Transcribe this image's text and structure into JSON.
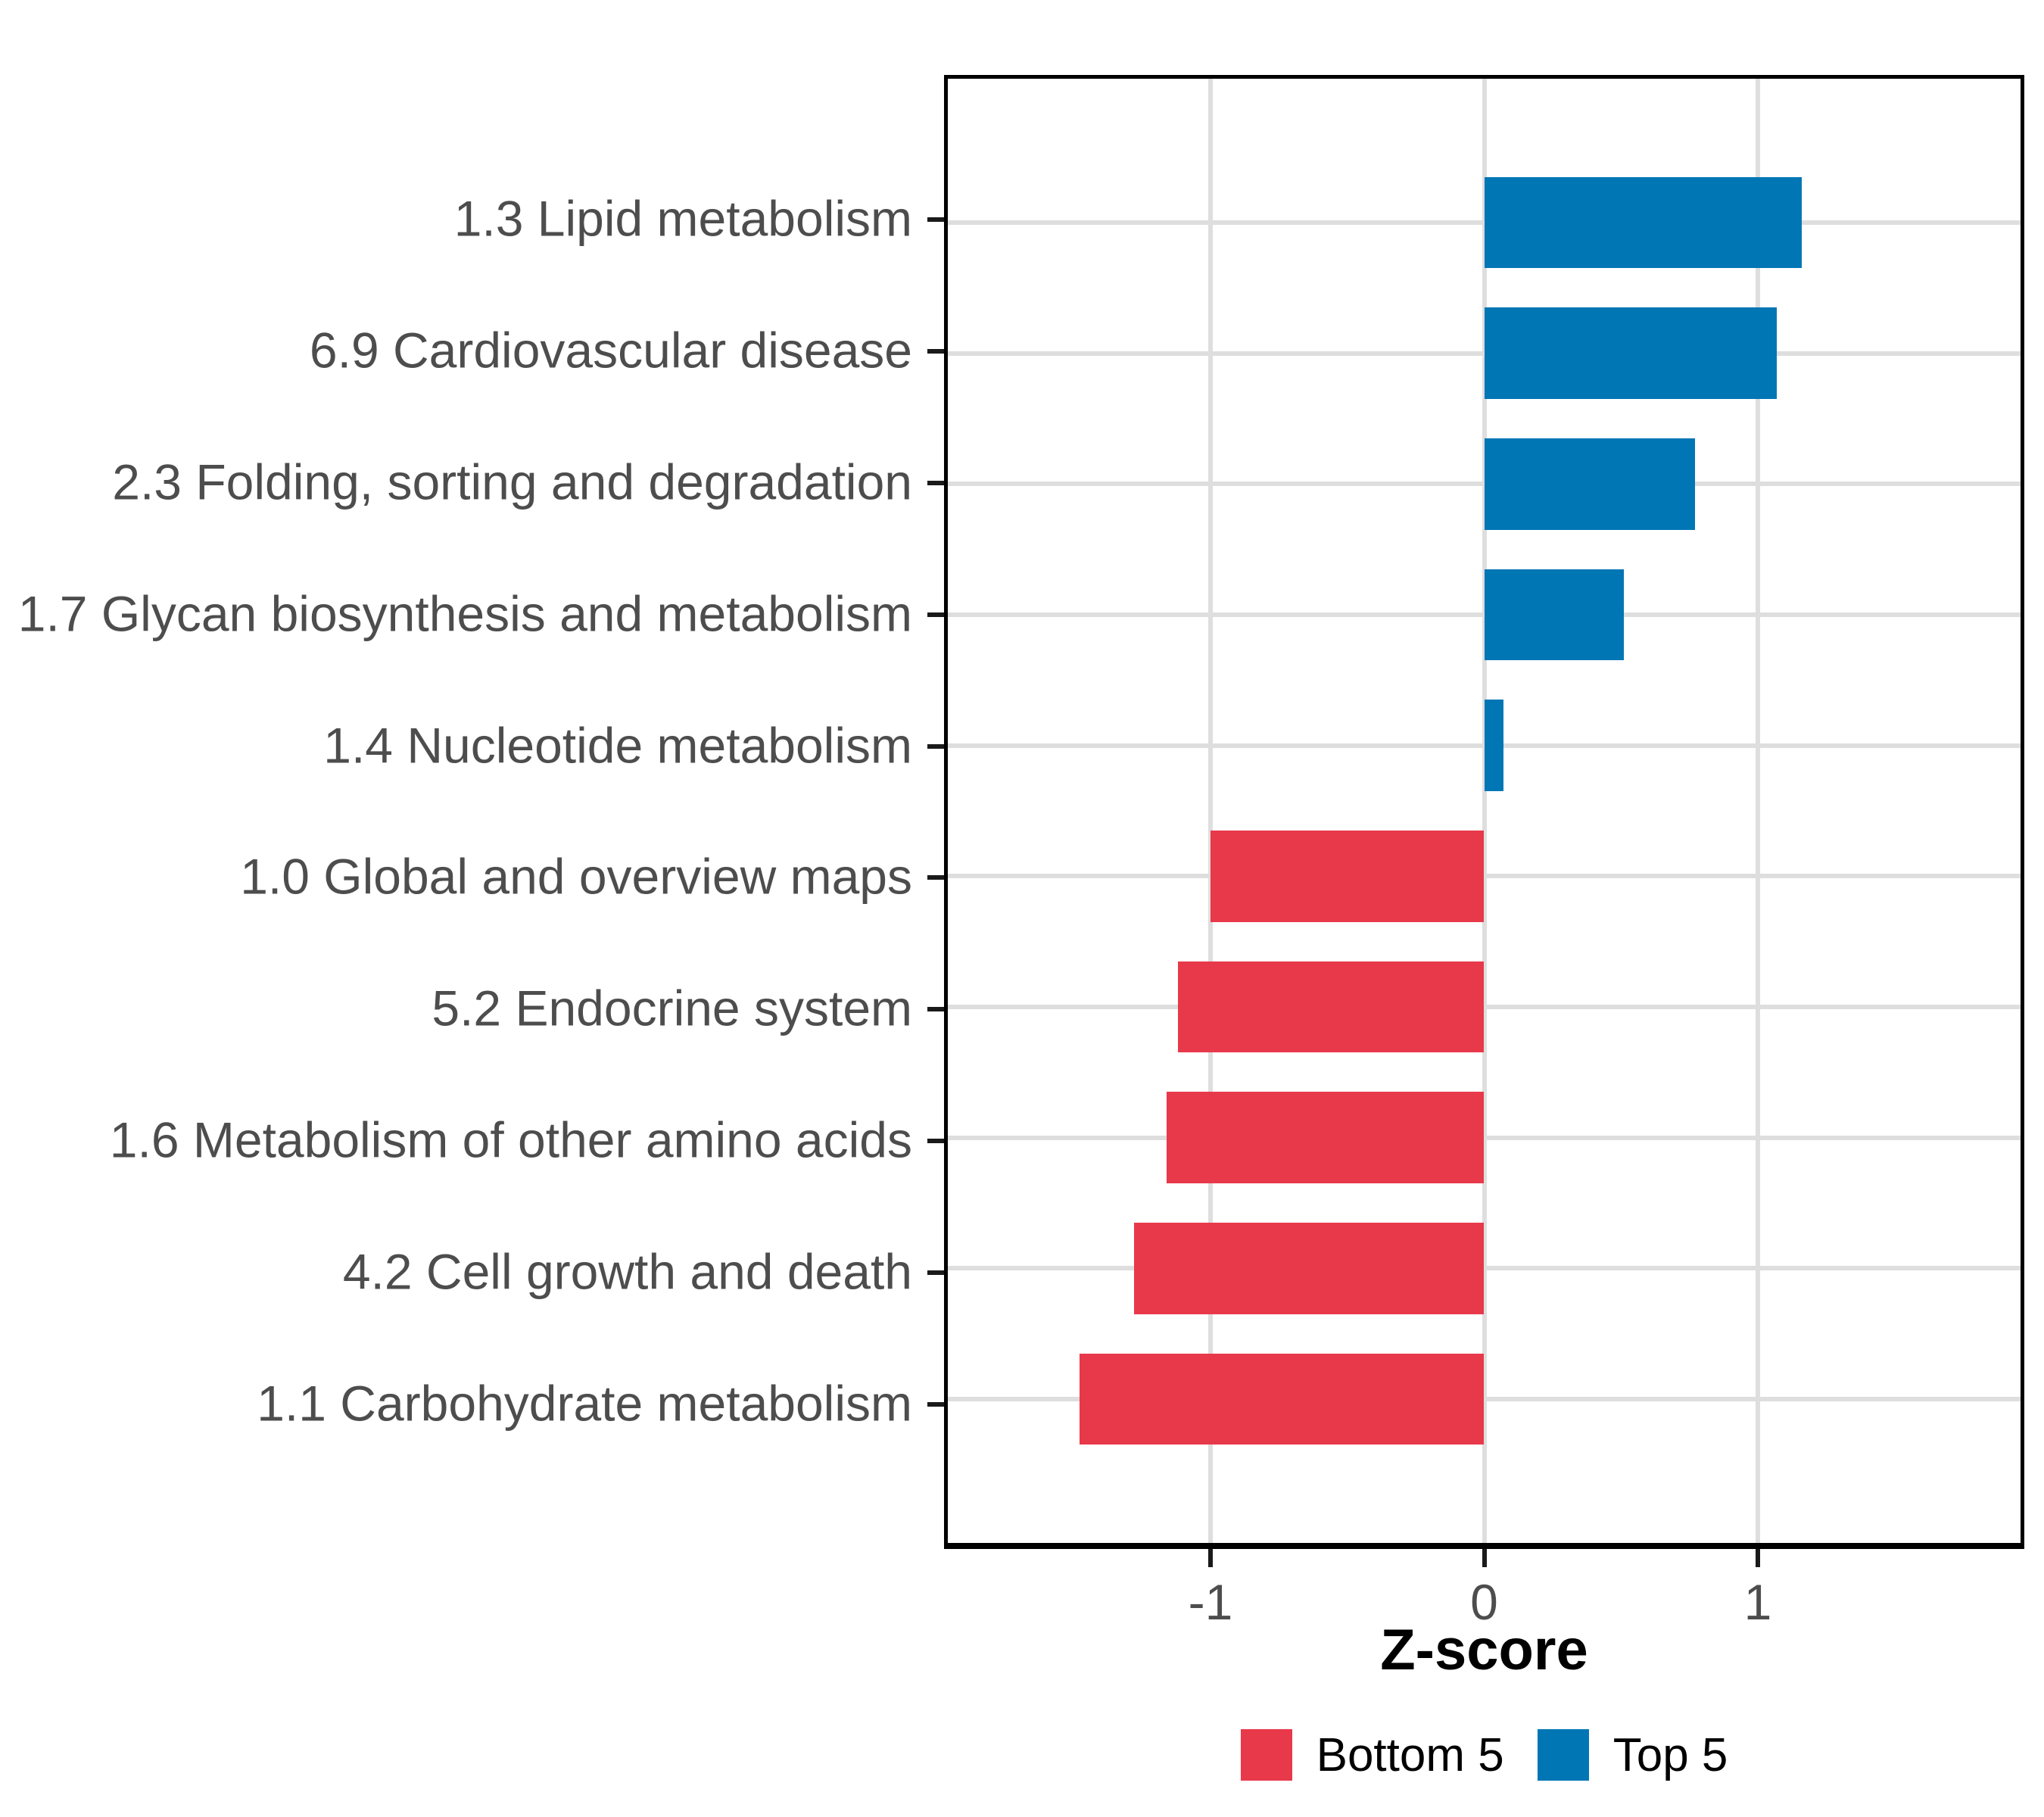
{
  "chart_data": {
    "type": "bar",
    "orientation": "horizontal",
    "title": "",
    "xlabel": "Z-score",
    "ylabel": "",
    "categories": [
      "1.3 Lipid metabolism",
      "6.9 Cardiovascular disease",
      "2.3 Folding, sorting and degradation",
      "1.7 Glycan biosynthesis and metabolism",
      "1.4 Nucleotide metabolism",
      "1.0 Global and overview maps",
      "5.2 Endocrine system",
      "1.6 Metabolism of other amino acids",
      "4.2 Cell growth and death",
      "1.1 Carbohydrate metabolism"
    ],
    "values": [
      1.16,
      1.07,
      0.77,
      0.51,
      0.07,
      -1.0,
      -1.12,
      -1.16,
      -1.28,
      -1.48
    ],
    "groups": [
      "Top 5",
      "Top 5",
      "Top 5",
      "Top 5",
      "Top 5",
      "Bottom 5",
      "Bottom 5",
      "Bottom 5",
      "Bottom 5",
      "Bottom 5"
    ],
    "xlim": [
      -1.96,
      1.96
    ],
    "xticks": [
      -1,
      0,
      1
    ],
    "xtick_labels": [
      "-1",
      "0",
      "1"
    ],
    "grid": "major-only",
    "legend_position": "bottom",
    "legend": [
      {
        "label": "Bottom 5",
        "color": "#E8394A"
      },
      {
        "label": "Top 5",
        "color": "#0076B5"
      }
    ],
    "colors": {
      "gridline": "#DEDEDE",
      "axis_text": "#4D4D4D",
      "tick_mark": "#1A1A1A",
      "panel_border": "#000000",
      "background": "#FFFFFF"
    },
    "band_expansion": 0.6,
    "bar_width_fraction": 0.7
  }
}
